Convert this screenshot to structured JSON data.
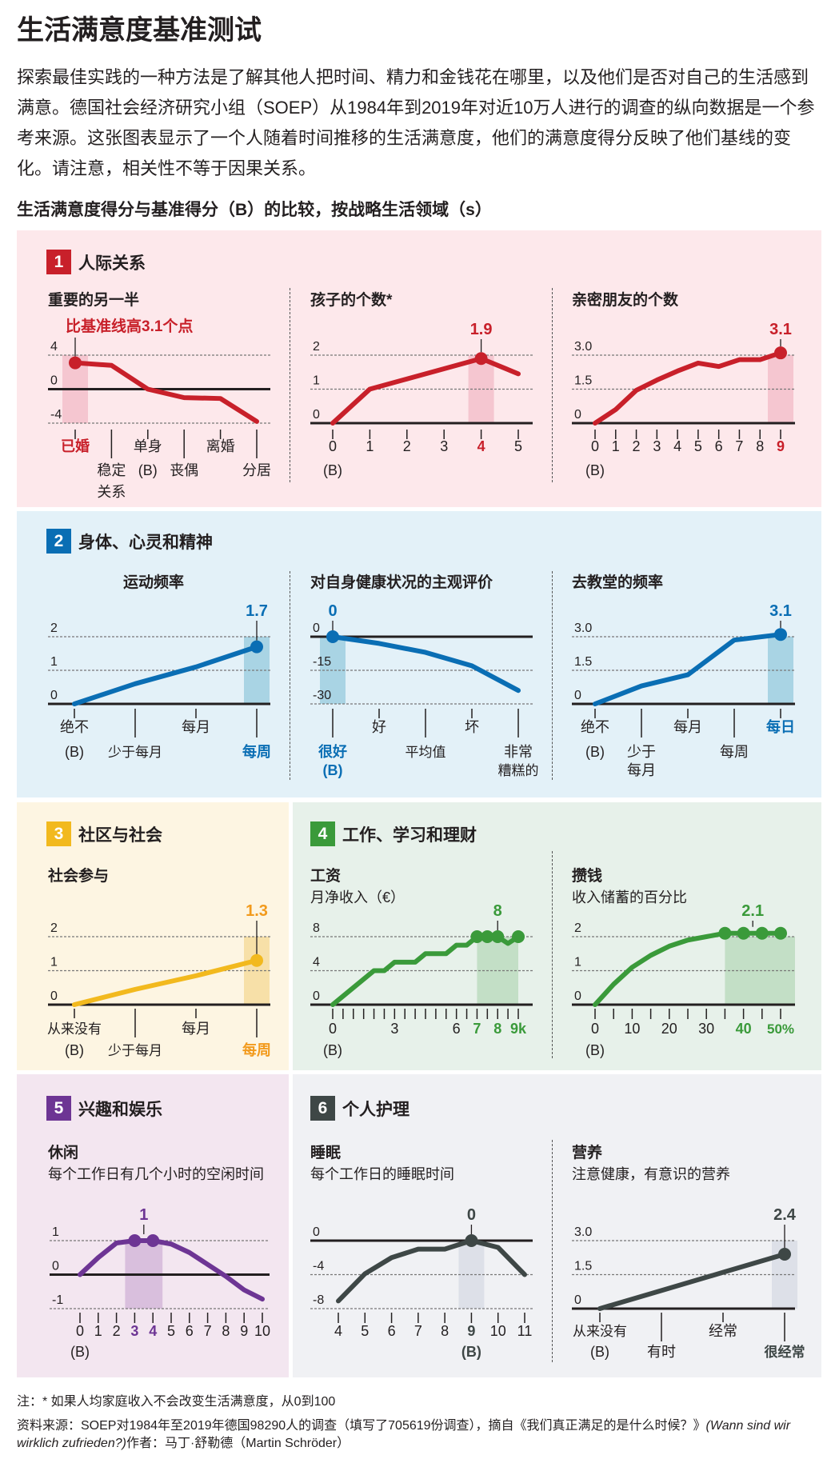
{
  "header": {
    "title": "生活满意度基准测试",
    "intro": "探索最佳实践的一种方法是了解其他人把时间、精力和金钱花在哪里，以及他们是否对自己的生活感到满意。德国社会经济研究小组（SOEP）从1984年到2019年对近10万人进行的调查的纵向数据是一个参考来源。这张图表显示了一个人随着时间推移的生活满意度，他们的满意度得分反映了他们基线的变化。请注意，相关性不等于因果关系。",
    "subheading": "生活满意度得分与基准得分（B）的比较，按战略生活领域（s）"
  },
  "panels": [
    {
      "num": "1",
      "title": "人际关系",
      "color": "#c8202a",
      "bg": "#fde8eb"
    },
    {
      "num": "2",
      "title": "身体、心灵和精神",
      "color": "#0a6eb4",
      "bg": "#e3f1f8"
    },
    {
      "num": "3",
      "title": "社区与社会",
      "color": "#f2b91e",
      "bg": "#fdf5e2"
    },
    {
      "num": "4",
      "title": "工作、学习和理财",
      "color": "#3a9a3a",
      "bg": "#e7f1ea"
    },
    {
      "num": "5",
      "title": "兴趣和娱乐",
      "color": "#6d3594",
      "bg": "#f3e6f0"
    },
    {
      "num": "6",
      "title": "个人护理",
      "color": "#3e4746",
      "bg": "#f0f1f4"
    }
  ],
  "chart_data": [
    {
      "type": "line",
      "title": "重要的另一半",
      "color": "#c8202a",
      "band": "#f5c6d0",
      "xlim": [
        0,
        5
      ],
      "ylim": [
        -4,
        4
      ],
      "yticks": [
        {
          "v": 4,
          "label": "4"
        },
        {
          "v": 0,
          "label": "0",
          "solid": true
        },
        {
          "v": -4,
          "label": "-4"
        }
      ],
      "x": [
        0,
        1,
        2,
        3,
        4,
        5
      ],
      "y": [
        3.1,
        2.8,
        0,
        -1.0,
        -1.1,
        -3.8
      ],
      "dots": [
        0
      ],
      "highlight": [
        0,
        0
      ],
      "value_label": {
        "x": 0,
        "text": "比基准线高3.1个点"
      },
      "xlabels": [
        {
          "x": 0,
          "text": "已婚",
          "row": 1,
          "accent": true
        },
        {
          "x": 1,
          "text": "稳定",
          "row": 2
        },
        {
          "x": 1,
          "text": "关系",
          "row": 3,
          "tick": false
        },
        {
          "x": 2,
          "text": "单身",
          "row": 1
        },
        {
          "x": 2,
          "text": "(B)",
          "row": 2,
          "tick": false
        },
        {
          "x": 3,
          "text": "丧偶",
          "row": 2
        },
        {
          "x": 4,
          "text": "离婚",
          "row": 1
        },
        {
          "x": 5,
          "text": "分居",
          "row": 2
        }
      ]
    },
    {
      "type": "line",
      "title": "孩子的个数*",
      "color": "#c8202a",
      "band": "#f5c6d0",
      "xlim": [
        0,
        5
      ],
      "ylim": [
        0,
        2
      ],
      "yticks": [
        {
          "v": 2,
          "label": "2"
        },
        {
          "v": 1,
          "label": "1"
        },
        {
          "v": 0,
          "label": "0",
          "solid": true
        }
      ],
      "x": [
        0,
        1,
        2,
        3,
        4,
        5
      ],
      "y": [
        0,
        1.0,
        1.3,
        1.6,
        1.9,
        1.45
      ],
      "dots": [
        4
      ],
      "highlight": [
        4,
        4
      ],
      "value_label": {
        "x": 4,
        "text": "1.9"
      },
      "xlabels": [
        {
          "x": 0,
          "text": "0",
          "row": 1
        },
        {
          "x": 0,
          "text": "(B)",
          "row": 2,
          "tick": false
        },
        {
          "x": 1,
          "text": "1",
          "row": 1
        },
        {
          "x": 2,
          "text": "2",
          "row": 1
        },
        {
          "x": 3,
          "text": "3",
          "row": 1
        },
        {
          "x": 4,
          "text": "4",
          "row": 1,
          "accent": true
        },
        {
          "x": 5,
          "text": "5",
          "row": 1
        }
      ]
    },
    {
      "type": "line",
      "title": "亲密朋友的个数",
      "color": "#c8202a",
      "band": "#f5c6d0",
      "xlim": [
        0,
        9
      ],
      "ylim": [
        0,
        3
      ],
      "yticks": [
        {
          "v": 3,
          "label": "3.0"
        },
        {
          "v": 1.5,
          "label": "1.5"
        },
        {
          "v": 0,
          "label": "0",
          "solid": true
        }
      ],
      "x": [
        0,
        1,
        2,
        3,
        4,
        5,
        6,
        7,
        8,
        9
      ],
      "y": [
        0,
        0.6,
        1.45,
        1.9,
        2.3,
        2.65,
        2.5,
        2.8,
        2.8,
        3.1
      ],
      "dots": [
        9
      ],
      "highlight": [
        9,
        9
      ],
      "value_label": {
        "x": 9,
        "text": "3.1"
      },
      "xlabels": [
        {
          "x": 0,
          "text": "0",
          "row": 1
        },
        {
          "x": 0,
          "text": "(B)",
          "row": 2,
          "tick": false
        },
        {
          "x": 1,
          "text": "1",
          "row": 1
        },
        {
          "x": 2,
          "text": "2",
          "row": 1
        },
        {
          "x": 3,
          "text": "3",
          "row": 1
        },
        {
          "x": 4,
          "text": "4",
          "row": 1
        },
        {
          "x": 5,
          "text": "5",
          "row": 1
        },
        {
          "x": 6,
          "text": "6",
          "row": 1
        },
        {
          "x": 7,
          "text": "7",
          "row": 1
        },
        {
          "x": 8,
          "text": "8",
          "row": 1
        },
        {
          "x": 9,
          "text": "9",
          "row": 1,
          "accent": true
        }
      ]
    },
    {
      "type": "line",
      "title": "运动频率",
      "color": "#0a6eb4",
      "band": "#a9d4e4",
      "xlim": [
        0,
        3
      ],
      "ylim": [
        0,
        2
      ],
      "yticks": [
        {
          "v": 2,
          "label": "2"
        },
        {
          "v": 1,
          "label": "1"
        },
        {
          "v": 0,
          "label": "0",
          "solid": true
        }
      ],
      "x": [
        0,
        1,
        2,
        3
      ],
      "y": [
        0,
        0.6,
        1.1,
        1.7
      ],
      "dots": [
        3
      ],
      "highlight": [
        3,
        3
      ],
      "value_label": {
        "x": 3,
        "text": "1.7"
      },
      "xlabels": [
        {
          "x": 0,
          "text": "绝不",
          "row": 1
        },
        {
          "x": 0,
          "text": "(B)",
          "row": 2,
          "tick": false
        },
        {
          "x": 1,
          "text": "少于每月",
          "row": 2
        },
        {
          "x": 2,
          "text": "每月",
          "row": 1
        },
        {
          "x": 3,
          "text": "每周",
          "row": 2,
          "accent": true
        }
      ]
    },
    {
      "type": "line",
      "title": "对自身健康状况的主观评价",
      "color": "#0a6eb4",
      "band": "#a9d4e4",
      "xlim": [
        0,
        4
      ],
      "ylim": [
        -30,
        0
      ],
      "yticks": [
        {
          "v": 0,
          "label": "0",
          "solid": true
        },
        {
          "v": -15,
          "label": "-15"
        },
        {
          "v": -30,
          "label": "-30"
        }
      ],
      "x": [
        0,
        1,
        2,
        3,
        4
      ],
      "y": [
        0,
        -3,
        -7,
        -13,
        -24
      ],
      "dots": [
        0
      ],
      "highlight": [
        0,
        0
      ],
      "value_label": {
        "x": 0,
        "text": "0"
      },
      "xlabels": [
        {
          "x": 0,
          "text": "很好",
          "row": 2,
          "accent": true
        },
        {
          "x": 0,
          "text": "(B)",
          "row": 3,
          "tick": false,
          "accent": true
        },
        {
          "x": 1,
          "text": "好",
          "row": 1
        },
        {
          "x": 2,
          "text": "平均值",
          "row": 2
        },
        {
          "x": 3,
          "text": "坏",
          "row": 1
        },
        {
          "x": 4,
          "text": "非常",
          "row": 2
        },
        {
          "x": 4,
          "text": "糟糕的",
          "row": 3,
          "tick": false
        }
      ]
    },
    {
      "type": "line",
      "title": "去教堂的频率",
      "color": "#0a6eb4",
      "band": "#a9d4e4",
      "xlim": [
        0,
        4
      ],
      "ylim": [
        0,
        3
      ],
      "yticks": [
        {
          "v": 3,
          "label": "3.0"
        },
        {
          "v": 1.5,
          "label": "1.5"
        },
        {
          "v": 0,
          "label": "0",
          "solid": true
        }
      ],
      "x": [
        0,
        1,
        2,
        3,
        4
      ],
      "y": [
        0,
        0.8,
        1.3,
        2.85,
        3.1
      ],
      "dots": [
        4
      ],
      "highlight": [
        4,
        4
      ],
      "value_label": {
        "x": 4,
        "text": "3.1"
      },
      "xlabels": [
        {
          "x": 0,
          "text": "绝不",
          "row": 1
        },
        {
          "x": 0,
          "text": "(B)",
          "row": 2,
          "tick": false
        },
        {
          "x": 1,
          "text": "少于",
          "row": 2
        },
        {
          "x": 1,
          "text": "每月",
          "row": 3,
          "tick": false
        },
        {
          "x": 2,
          "text": "每月",
          "row": 1
        },
        {
          "x": 3,
          "text": "每周",
          "row": 2
        },
        {
          "x": 4,
          "text": "每日",
          "row": 1,
          "accent": true
        }
      ]
    },
    {
      "type": "line",
      "title": "社会参与",
      "color": "#f2b91e",
      "label_color": "#f29a1c",
      "band": "#f7e0a8",
      "xlim": [
        0,
        3
      ],
      "ylim": [
        0,
        2
      ],
      "yticks": [
        {
          "v": 2,
          "label": "2"
        },
        {
          "v": 1,
          "label": "1"
        },
        {
          "v": 0,
          "label": "0",
          "solid": true
        }
      ],
      "x": [
        0,
        1,
        2,
        3
      ],
      "y": [
        0,
        0.45,
        0.85,
        1.3
      ],
      "dots": [
        3
      ],
      "highlight": [
        3,
        3
      ],
      "value_label": {
        "x": 3,
        "text": "1.3"
      },
      "xlabels": [
        {
          "x": 0,
          "text": "从来没有",
          "row": 1
        },
        {
          "x": 0,
          "text": "(B)",
          "row": 2,
          "tick": false
        },
        {
          "x": 1,
          "text": "少于每月",
          "row": 2
        },
        {
          "x": 2,
          "text": "每月",
          "row": 1
        },
        {
          "x": 3,
          "text": "每周",
          "row": 2,
          "accent": true
        }
      ]
    },
    {
      "type": "line",
      "title": "工资",
      "subtitle": "月净收入（€）",
      "color": "#3a9a3a",
      "band": "#c3dfc6",
      "xlim": [
        0,
        9
      ],
      "ylim": [
        0,
        8
      ],
      "tick_step": 0.5,
      "yticks": [
        {
          "v": 8,
          "label": "8"
        },
        {
          "v": 4,
          "label": "4"
        },
        {
          "v": 0,
          "label": "0",
          "solid": true
        }
      ],
      "x": [
        0,
        2,
        2.5,
        3,
        4,
        4.5,
        5.5,
        6,
        6.5,
        7,
        7.5,
        8,
        8.5,
        9
      ],
      "y": [
        0,
        4,
        4,
        5,
        5,
        6,
        6,
        7,
        7,
        8,
        8,
        8,
        7.2,
        8
      ],
      "dots": [
        7,
        7.5,
        8,
        9
      ],
      "highlight": [
        7,
        9
      ],
      "value_label": {
        "x": 8,
        "text": "8"
      },
      "xlabels": [
        {
          "x": 0,
          "text": "0",
          "row": 1
        },
        {
          "x": 0,
          "text": "(B)",
          "row": 2
        },
        {
          "x": 3,
          "text": "3",
          "row": 1
        },
        {
          "x": 6,
          "text": "6",
          "row": 1
        },
        {
          "x": 7,
          "text": "7",
          "row": 1,
          "accent": true
        },
        {
          "x": 8,
          "text": "8",
          "row": 1,
          "accent": true
        },
        {
          "x": 9,
          "text": "9k",
          "row": 1,
          "accent": true
        }
      ]
    },
    {
      "type": "line",
      "title": "攒钱",
      "subtitle": "收入储蓄的百分比",
      "color": "#3a9a3a",
      "band": "#c3dfc6",
      "xlim": [
        0,
        50
      ],
      "ylim": [
        0,
        2
      ],
      "tick_step": 5,
      "yticks": [
        {
          "v": 2,
          "label": "2"
        },
        {
          "v": 1,
          "label": "1"
        },
        {
          "v": 0,
          "label": "0",
          "solid": true
        }
      ],
      "x": [
        0,
        5,
        10,
        15,
        20,
        25,
        30,
        35,
        40,
        45,
        50
      ],
      "y": [
        0,
        0.6,
        1.1,
        1.45,
        1.72,
        1.9,
        2.0,
        2.1,
        2.1,
        2.1,
        2.1
      ],
      "dots": [
        35,
        40,
        45,
        50
      ],
      "highlight": [
        35,
        50
      ],
      "value_label": {
        "x": 42.5,
        "text": "2.1"
      },
      "xlabels": [
        {
          "x": 0,
          "text": "0",
          "row": 1
        },
        {
          "x": 0,
          "text": "(B)",
          "row": 2
        },
        {
          "x": 10,
          "text": "10",
          "row": 1
        },
        {
          "x": 20,
          "text": "20",
          "row": 1
        },
        {
          "x": 30,
          "text": "30",
          "row": 1
        },
        {
          "x": 40,
          "text": "40",
          "row": 1,
          "accent": true
        },
        {
          "x": 50,
          "text": "50%",
          "row": 1,
          "accent": true
        }
      ]
    },
    {
      "type": "line",
      "title": "休闲",
      "subtitle": "每个工作日有几个小时的空闲时间",
      "color": "#6d3594",
      "band": "#d9bfdd",
      "xlim": [
        0,
        10
      ],
      "ylim": [
        -1,
        1
      ],
      "tick_step": 1,
      "yticks": [
        {
          "v": 1,
          "label": "1"
        },
        {
          "v": 0,
          "label": "0",
          "solid": true
        },
        {
          "v": -1,
          "label": "-1"
        }
      ],
      "x": [
        0,
        1,
        2,
        3,
        4,
        5,
        6,
        7,
        8,
        9,
        10
      ],
      "y": [
        0,
        0.5,
        0.93,
        1.0,
        1.0,
        0.9,
        0.65,
        0.3,
        -0.05,
        -0.45,
        -0.72
      ],
      "dots": [
        3,
        4
      ],
      "highlight": [
        3,
        4
      ],
      "value_label": {
        "x": 3.5,
        "text": "1"
      },
      "xlabels": [
        {
          "x": 0,
          "text": "0",
          "row": 1
        },
        {
          "x": 0,
          "text": "(B)",
          "row": 2
        },
        {
          "x": 1,
          "text": "1",
          "row": 1
        },
        {
          "x": 2,
          "text": "2",
          "row": 1
        },
        {
          "x": 3,
          "text": "3",
          "row": 1,
          "accent": true
        },
        {
          "x": 4,
          "text": "4",
          "row": 1,
          "accent": true
        },
        {
          "x": 5,
          "text": "5",
          "row": 1
        },
        {
          "x": 6,
          "text": "6",
          "row": 1
        },
        {
          "x": 7,
          "text": "7",
          "row": 1
        },
        {
          "x": 8,
          "text": "8",
          "row": 1
        },
        {
          "x": 9,
          "text": "9",
          "row": 1
        },
        {
          "x": 10,
          "text": "10",
          "row": 1
        }
      ]
    },
    {
      "type": "line",
      "title": "睡眠",
      "subtitle": "每个工作日的睡眠时间",
      "color": "#3e4746",
      "band": "#dde0e8",
      "xlim": [
        4,
        11
      ],
      "ylim": [
        -8,
        0
      ],
      "tick_step": 1,
      "yticks": [
        {
          "v": 0,
          "label": "0",
          "solid": true
        },
        {
          "v": -4,
          "label": "-4"
        },
        {
          "v": -8,
          "label": "-8"
        }
      ],
      "x": [
        4,
        5,
        6,
        7,
        8,
        9,
        10,
        11
      ],
      "y": [
        -7.1,
        -3.9,
        -2.0,
        -1.0,
        -1.0,
        0,
        -0.8,
        -4.0
      ],
      "dots": [
        9
      ],
      "highlight": [
        9,
        9
      ],
      "value_label": {
        "x": 9,
        "text": "0"
      },
      "xlabels": [
        {
          "x": 4,
          "text": "4",
          "row": 1
        },
        {
          "x": 5,
          "text": "5",
          "row": 1
        },
        {
          "x": 6,
          "text": "6",
          "row": 1
        },
        {
          "x": 7,
          "text": "7",
          "row": 1
        },
        {
          "x": 8,
          "text": "8",
          "row": 1
        },
        {
          "x": 9,
          "text": "9",
          "row": 1,
          "accent": true
        },
        {
          "x": 9,
          "text": "(B)",
          "row": 2,
          "accent": true
        },
        {
          "x": 10,
          "text": "10",
          "row": 1
        },
        {
          "x": 11,
          "text": "11",
          "row": 1
        }
      ]
    },
    {
      "type": "line",
      "title": "营养",
      "subtitle": "注意健康，有意识的营养",
      "color": "#3e4746",
      "band": "#dde0e8",
      "xlim": [
        0,
        3
      ],
      "ylim": [
        0,
        3
      ],
      "yticks": [
        {
          "v": 3,
          "label": "3.0"
        },
        {
          "v": 1.5,
          "label": "1.5"
        },
        {
          "v": 0,
          "label": "0",
          "solid": true
        }
      ],
      "x": [
        0,
        1,
        2,
        3
      ],
      "y": [
        0,
        0.8,
        1.6,
        2.4
      ],
      "dots": [
        3
      ],
      "highlight": [
        3,
        3
      ],
      "value_label": {
        "x": 3,
        "text": "2.4"
      },
      "xlabels": [
        {
          "x": 0,
          "text": "从来没有",
          "row": 1
        },
        {
          "x": 0,
          "text": "(B)",
          "row": 2,
          "tick": false
        },
        {
          "x": 1,
          "text": "有时",
          "row": 2
        },
        {
          "x": 2,
          "text": "经常",
          "row": 1
        },
        {
          "x": 3,
          "text": "很经常",
          "row": 2,
          "accent": true
        }
      ]
    }
  ],
  "footer": {
    "note": "注：* 如果人均家庭收入不会改变生活满意度，从0到100",
    "source": "资料来源：SOEP对1984年至2019年德国98290人的调查（填写了705619份调查），摘自《我们真正满足的是什么时候？》",
    "source_italic": "(Wann sind wir wirklich zufrieden?)",
    "author": "作者：马丁·舒勒德（Martin Schröder）"
  }
}
